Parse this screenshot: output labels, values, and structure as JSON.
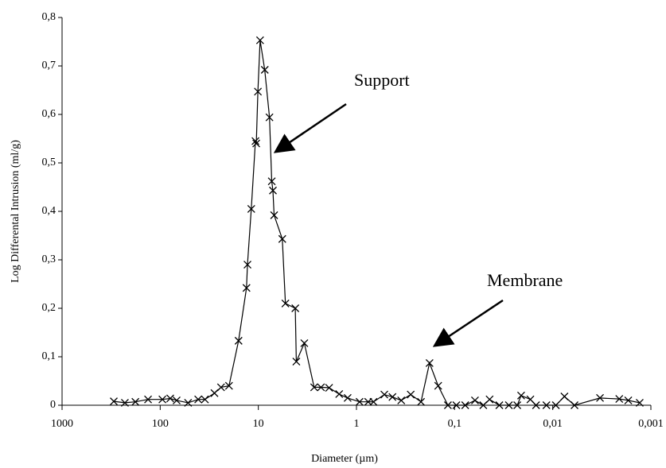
{
  "chart_data": {
    "type": "line",
    "x_label": "Diameter (µm)",
    "y_label": "Log Differental Intrusion (ml/g)",
    "annotations": [
      "Support",
      "Membrane"
    ],
    "log_x": true,
    "xlim": [
      1000,
      0.001
    ],
    "xticks": [
      1000,
      100,
      10,
      1,
      {
        "value": 0.1,
        "label": "0,1"
      },
      {
        "value": 0.01,
        "label": "0,01"
      },
      {
        "value": 0.001,
        "label": "0,001"
      }
    ],
    "ylim": [
      0,
      0.8
    ],
    "yticks": [
      0,
      {
        "value": 0.1,
        "label": "0,1"
      },
      {
        "value": 0.2,
        "label": "0,2"
      },
      {
        "value": 0.3,
        "label": "0,3"
      },
      {
        "value": 0.4,
        "label": "0,4"
      },
      {
        "value": 0.5,
        "label": "0,5"
      },
      {
        "value": 0.6,
        "label": "0,6"
      },
      {
        "value": 0.7,
        "label": "0,7"
      },
      {
        "value": 0.8,
        "label": "0,8"
      }
    ],
    "color": "#000000",
    "x": [
      297,
      229,
      179,
      133,
      95,
      79,
      68,
      52,
      41,
      35,
      28,
      24,
      19.9,
      15.9,
      13.2,
      12.9,
      11.8,
      10.7,
      10.5,
      10.1,
      9.6,
      8.6,
      7.7,
      7.3,
      7.1,
      6.9,
      5.7,
      5.3,
      4.2,
      4.1,
      3.4,
      2.7,
      2.3,
      1.9,
      1.5,
      1.23,
      0.93,
      0.76,
      0.67,
      0.52,
      0.43,
      0.35,
      0.28,
      0.22,
      0.18,
      0.147,
      0.117,
      0.096,
      0.078,
      0.062,
      0.051,
      0.044,
      0.035,
      0.028,
      0.023,
      0.021,
      0.0169,
      0.0148,
      0.0116,
      0.0093,
      0.0076,
      0.006,
      0.0033,
      0.0021,
      0.0017,
      0.0013
    ],
    "values": [
      0.008,
      0.005,
      0.007,
      0.012,
      0.012,
      0.014,
      0.01,
      0.005,
      0.012,
      0.012,
      0.025,
      0.037,
      0.04,
      0.133,
      0.242,
      0.29,
      0.405,
      0.545,
      0.54,
      0.647,
      0.753,
      0.692,
      0.594,
      0.462,
      0.443,
      0.392,
      0.343,
      0.21,
      0.2,
      0.09,
      0.128,
      0.037,
      0.037,
      0.036,
      0.023,
      0.015,
      0.007,
      0.007,
      0.007,
      0.022,
      0.017,
      0.01,
      0.022,
      0.007,
      0.087,
      0.04,
      0,
      0,
      0,
      0.01,
      0,
      0.012,
      0,
      0,
      0,
      0.02,
      0.012,
      0,
      0,
      0,
      0.018,
      0,
      0.015,
      0.013,
      0.01,
      0.005
    ]
  }
}
